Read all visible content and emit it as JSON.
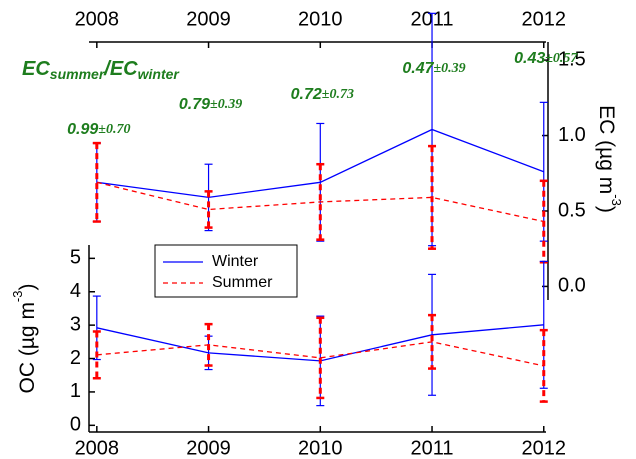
{
  "chart_data": [
    {
      "type": "line",
      "x": [
        2008,
        2009,
        2010,
        2011,
        2012
      ],
      "xlim": [
        2007.93,
        2012.02
      ],
      "xticks": [
        2008,
        2009,
        2010,
        2011,
        2012
      ],
      "ylim": [
        -0.09,
        1.62
      ],
      "yticks": [
        {
          "value": 0,
          "label": "0.0"
        },
        {
          "value": 0.5,
          "label": "0.5"
        },
        {
          "value": 1,
          "label": "1.0"
        },
        {
          "value": 1.5,
          "label": "1.5"
        }
      ],
      "y_label": [
        "EC  (µg m",
        "-3",
        ")"
      ],
      "annotation": [
        "EC",
        "summer",
        "/EC",
        "winter"
      ],
      "ratio_labels": [
        {
          "ratio": "0.99",
          "sd": "±0.70"
        },
        {
          "ratio": "0.79",
          "sd": "±0.39"
        },
        {
          "ratio": "0.72",
          "sd": "±0.73"
        },
        {
          "ratio": "0.47",
          "sd": "±0.39"
        },
        {
          "ratio": "0.43",
          "sd": "±0.57"
        }
      ],
      "series": [
        {
          "name": "Winter",
          "color": "#0000ff",
          "values": [
            0.69,
            0.59,
            0.69,
            1.04,
            0.76
          ],
          "errors": [
            0.26,
            0.22,
            0.39,
            0.77,
            0.46
          ]
        },
        {
          "name": "Summer",
          "color": "#ff0000",
          "values": [
            0.69,
            0.51,
            0.56,
            0.59,
            0.43
          ],
          "errors": [
            0.26,
            0.12,
            0.25,
            0.34,
            0.27
          ]
        }
      ]
    },
    {
      "type": "line",
      "x": [
        2008,
        2009,
        2010,
        2011,
        2012
      ],
      "xlim": [
        2007.93,
        2012.02
      ],
      "xticks": [
        2008,
        2009,
        2010,
        2011,
        2012
      ],
      "ylim": [
        -0.2,
        5.4
      ],
      "yticks": [
        0,
        1,
        2,
        3,
        4,
        5
      ],
      "y_label": [
        "OC  (µg m",
        "-3",
        ")"
      ],
      "series": [
        {
          "name": "Winter",
          "color": "#0000ff",
          "values": [
            2.92,
            2.17,
            1.93,
            2.71,
            3.01
          ],
          "errors": [
            0.95,
            0.5,
            1.34,
            1.81,
            1.9
          ]
        },
        {
          "name": "Summer",
          "color": "#ff0000",
          "values": [
            2.11,
            2.41,
            2.02,
            2.5,
            1.78
          ],
          "errors": [
            0.7,
            0.62,
            1.2,
            0.8,
            1.07
          ]
        }
      ]
    }
  ]
}
